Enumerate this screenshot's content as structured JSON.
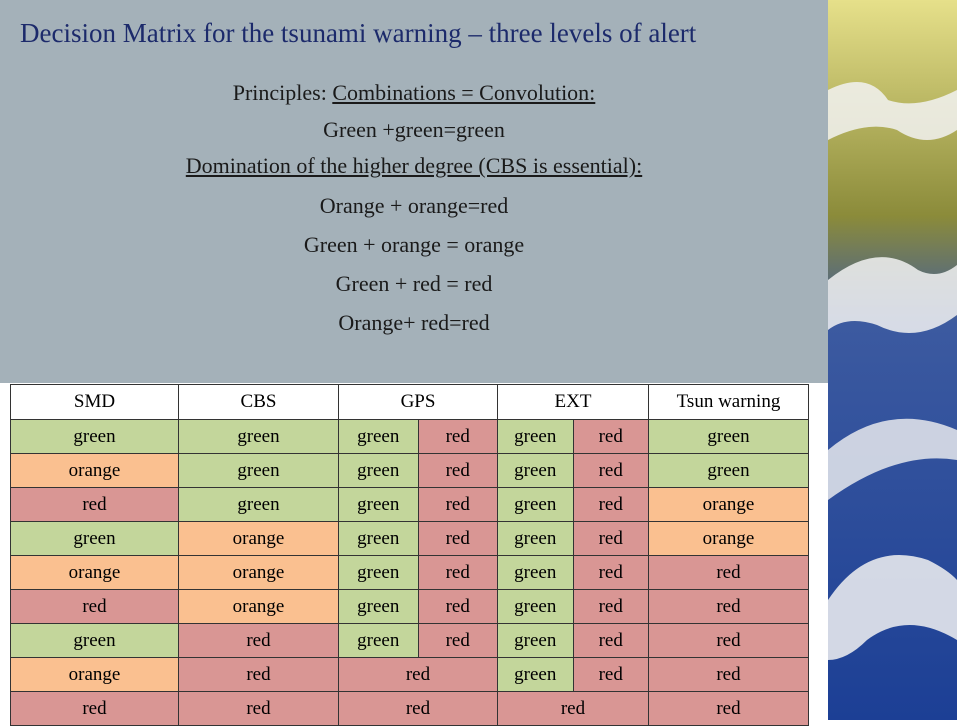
{
  "slide": {
    "title": "Decision Matrix for the tsunami warning – three levels of alert",
    "principle_label": "Principles:",
    "principle_1": "Combinations = Convolution:",
    "rule_1": "Green +green=green",
    "principle_2": "Domination of the higher degree (CBS is essential):",
    "rules": [
      "Orange + orange=red",
      "Green + orange = orange",
      "Green + red = red",
      "Orange+ red=red"
    ]
  },
  "table": {
    "header": [
      "SMD",
      "CBS",
      "GPS",
      "EXT",
      "Tsun warning"
    ],
    "cell_colors": {
      "green": "#c3d69b",
      "orange": "#fac090",
      "red": "#d99694"
    },
    "rows": [
      [
        "green",
        "green",
        [
          "green",
          "red"
        ],
        [
          "green",
          "red"
        ],
        "green"
      ],
      [
        "orange",
        "green",
        [
          "green",
          "red"
        ],
        [
          "green",
          "red"
        ],
        "green"
      ],
      [
        "red",
        "green",
        [
          "green",
          "red"
        ],
        [
          "green",
          "red"
        ],
        "orange"
      ],
      [
        "green",
        "orange",
        [
          "green",
          "red"
        ],
        [
          "green",
          "red"
        ],
        "orange"
      ],
      [
        "orange",
        "orange",
        [
          "green",
          "red"
        ],
        [
          "green",
          "red"
        ],
        "red"
      ],
      [
        "red",
        "orange",
        [
          "green",
          "red"
        ],
        [
          "green",
          "red"
        ],
        "red"
      ],
      [
        "green",
        "red",
        [
          "green",
          "red"
        ],
        [
          "green",
          "red"
        ],
        "red"
      ],
      [
        "orange",
        "red",
        "red",
        [
          "green",
          "red"
        ],
        "red"
      ],
      [
        "red",
        "red",
        "red",
        "red",
        "red"
      ]
    ]
  }
}
